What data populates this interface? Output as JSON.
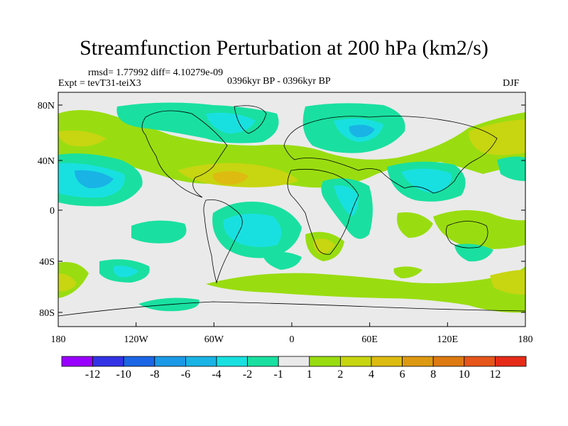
{
  "title": "Streamfunction Perturbation at 200 hPa (km2/s)",
  "stats": "rmsd= 1.77992 diff= 4.10279e-09",
  "experiment": "Expt = tevT31-teiX3",
  "period": "0396kyr BP - 0396kyr BP",
  "season": "DJF",
  "lat_ticks": [
    "80N",
    "40N",
    "0",
    "40S",
    "80S"
  ],
  "lon_ticks": [
    "180",
    "120W",
    "60W",
    "0",
    "60E",
    "120E",
    "180"
  ],
  "colorbar": {
    "colors": [
      "#9900ff",
      "#3333e6",
      "#1a66e6",
      "#1a99e6",
      "#19b3e6",
      "#19e0e0",
      "#19e0a0",
      "#eaeaea",
      "#99dd11",
      "#c8d511",
      "#ddbb11",
      "#dd9911",
      "#dd7a11",
      "#e65519",
      "#e62c19"
    ],
    "labels": [
      "-12",
      "-10",
      "-8",
      "-6",
      "-4",
      "-2",
      "-1",
      "1",
      "2",
      "4",
      "6",
      "8",
      "10",
      "12"
    ]
  },
  "field_colors": {
    "neutral": "#eaeaea",
    "neg1": "#19e0a0",
    "neg2": "#19e0e0",
    "neg3": "#19b3e6",
    "pos1": "#99dd11",
    "pos2": "#c8d511",
    "pos3": "#ddbb11",
    "pos4": "#dd9911"
  }
}
